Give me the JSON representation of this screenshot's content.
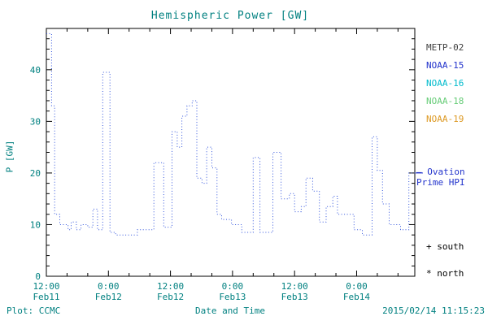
{
  "chart_data": {
    "type": "line",
    "title": "Hemispheric Power [GW]",
    "xlabel": "Date and Time",
    "ylabel": "P [GW]",
    "ylim": [
      0,
      48
    ],
    "x_range_hours": [
      0,
      71.25
    ],
    "grid": false,
    "legend_position": "right-outside",
    "x_ticks": [
      {
        "hours": 0,
        "time": "12:00",
        "date": "Feb11"
      },
      {
        "hours": 12,
        "time": "0:00",
        "date": "Feb12"
      },
      {
        "hours": 24,
        "time": "12:00",
        "date": "Feb12"
      },
      {
        "hours": 36,
        "time": "0:00",
        "date": "Feb13"
      },
      {
        "hours": 48,
        "time": "12:00",
        "date": "Feb13"
      },
      {
        "hours": 60,
        "time": "0:00",
        "date": "Feb14"
      }
    ],
    "y_ticks": [
      0,
      10,
      20,
      30,
      40
    ],
    "x_minor_step_hours": 4,
    "y_minor_step": 2,
    "series": [
      {
        "name": "Hemispheric Power (Ovation Prime HPI)",
        "color": "#3355dd",
        "style": "dotted-step",
        "points_hours_gw": [
          [
            0,
            47
          ],
          [
            1,
            33
          ],
          [
            1.6,
            12
          ],
          [
            2.6,
            10
          ],
          [
            4.2,
            9
          ],
          [
            4.8,
            10.5
          ],
          [
            5.8,
            9
          ],
          [
            6.7,
            10
          ],
          [
            8,
            9.5
          ],
          [
            9,
            13
          ],
          [
            9.9,
            9
          ],
          [
            10.9,
            39.5
          ],
          [
            12.3,
            8.5
          ],
          [
            13.4,
            8
          ],
          [
            17.6,
            9
          ],
          [
            20.8,
            22
          ],
          [
            22.7,
            9.5
          ],
          [
            24.3,
            28
          ],
          [
            25.3,
            25
          ],
          [
            26.2,
            31
          ],
          [
            27.2,
            33
          ],
          [
            28.2,
            34
          ],
          [
            29.1,
            19
          ],
          [
            30.1,
            18
          ],
          [
            31,
            25
          ],
          [
            32,
            21
          ],
          [
            33,
            12
          ],
          [
            33.9,
            11
          ],
          [
            35.8,
            10
          ],
          [
            37.8,
            8.5
          ],
          [
            40,
            23
          ],
          [
            41.3,
            8.5
          ],
          [
            43.8,
            24
          ],
          [
            45.4,
            15
          ],
          [
            47,
            16
          ],
          [
            48,
            12.5
          ],
          [
            49.3,
            13.5
          ],
          [
            50.2,
            19
          ],
          [
            51.5,
            16.5
          ],
          [
            52.8,
            10.5
          ],
          [
            54.1,
            13.5
          ],
          [
            55.4,
            15.5
          ],
          [
            56.3,
            12
          ],
          [
            59.5,
            9
          ],
          [
            61.1,
            8
          ],
          [
            63,
            27
          ],
          [
            64,
            20.5
          ],
          [
            65,
            14
          ],
          [
            66.3,
            10
          ],
          [
            68.5,
            9
          ],
          [
            70.1,
            20
          ]
        ]
      }
    ]
  },
  "legend": {
    "items": [
      {
        "label": "METP-02",
        "color": "#404040"
      },
      {
        "label": "NOAA-15",
        "color": "#2233cc"
      },
      {
        "label": "NOAA-16",
        "color": "#00bbcc"
      },
      {
        "label": "NOAA-18",
        "color": "#66cc77"
      },
      {
        "label": "NOAA-19",
        "color": "#dd9922"
      }
    ]
  },
  "annotations": {
    "ovation_line1": "— Ovation",
    "ovation_line2": "Prime HPI",
    "south": "+ south",
    "north": "* north"
  },
  "footer": {
    "plot_source": "Plot: CCMC",
    "timestamp": "2015/02/14 11:15:23"
  },
  "colors": {
    "axis_text": "#008080",
    "frame": "#000000",
    "line": "#3355dd",
    "ovation_label": "#2233cc"
  }
}
